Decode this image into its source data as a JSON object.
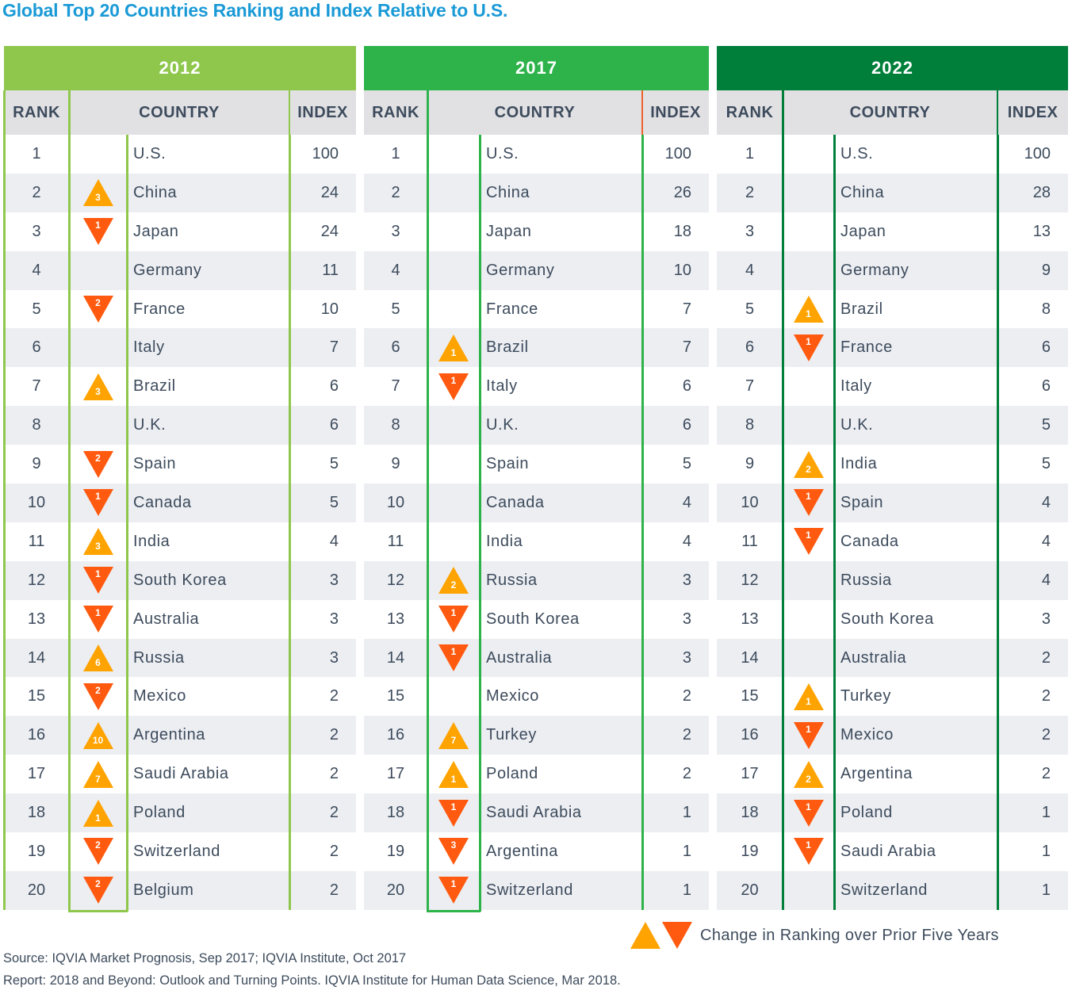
{
  "title": "Global Top 20 Countries Ranking and Index Relative to U.S.",
  "columns": {
    "rank": "RANK",
    "country": "COUNTRY",
    "index": "INDEX"
  },
  "colors": {
    "2012": "#8fc74d",
    "2017": "#2db34a",
    "2022": "#007f3a",
    "up": "#ffa300",
    "down": "#ff5a0f"
  },
  "panels": [
    {
      "year": "2012",
      "rows": [
        {
          "rank": "1",
          "country": "U.S.",
          "index": "100",
          "change": null
        },
        {
          "rank": "2",
          "country": "China",
          "index": "24",
          "change": {
            "dir": "up",
            "n": "3"
          }
        },
        {
          "rank": "3",
          "country": "Japan",
          "index": "24",
          "change": {
            "dir": "down",
            "n": "1"
          }
        },
        {
          "rank": "4",
          "country": "Germany",
          "index": "11",
          "change": null
        },
        {
          "rank": "5",
          "country": "France",
          "index": "10",
          "change": {
            "dir": "down",
            "n": "2"
          }
        },
        {
          "rank": "6",
          "country": "Italy",
          "index": "7",
          "change": null
        },
        {
          "rank": "7",
          "country": "Brazil",
          "index": "6",
          "change": {
            "dir": "up",
            "n": "3"
          }
        },
        {
          "rank": "8",
          "country": "U.K.",
          "index": "6",
          "change": null
        },
        {
          "rank": "9",
          "country": "Spain",
          "index": "5",
          "change": {
            "dir": "down",
            "n": "2"
          }
        },
        {
          "rank": "10",
          "country": "Canada",
          "index": "5",
          "change": {
            "dir": "down",
            "n": "1"
          }
        },
        {
          "rank": "11",
          "country": "India",
          "index": "4",
          "change": {
            "dir": "up",
            "n": "3"
          }
        },
        {
          "rank": "12",
          "country": "South Korea",
          "index": "3",
          "change": {
            "dir": "down",
            "n": "1"
          }
        },
        {
          "rank": "13",
          "country": "Australia",
          "index": "3",
          "change": {
            "dir": "down",
            "n": "1"
          }
        },
        {
          "rank": "14",
          "country": "Russia",
          "index": "3",
          "change": {
            "dir": "up",
            "n": "6"
          }
        },
        {
          "rank": "15",
          "country": "Mexico",
          "index": "2",
          "change": {
            "dir": "down",
            "n": "2"
          }
        },
        {
          "rank": "16",
          "country": "Argentina",
          "index": "2",
          "change": {
            "dir": "up",
            "n": "10"
          }
        },
        {
          "rank": "17",
          "country": "Saudi Arabia",
          "index": "2",
          "change": {
            "dir": "up",
            "n": "7"
          }
        },
        {
          "rank": "18",
          "country": "Poland",
          "index": "2",
          "change": {
            "dir": "up",
            "n": "1"
          }
        },
        {
          "rank": "19",
          "country": "Switzerland",
          "index": "2",
          "change": {
            "dir": "down",
            "n": "2"
          }
        },
        {
          "rank": "20",
          "country": "Belgium",
          "index": "2",
          "change": {
            "dir": "down",
            "n": "2"
          }
        }
      ]
    },
    {
      "year": "2017",
      "rows": [
        {
          "rank": "1",
          "country": "U.S.",
          "index": "100",
          "change": null
        },
        {
          "rank": "2",
          "country": "China",
          "index": "26",
          "change": null
        },
        {
          "rank": "3",
          "country": "Japan",
          "index": "18",
          "change": null
        },
        {
          "rank": "4",
          "country": "Germany",
          "index": "10",
          "change": null
        },
        {
          "rank": "5",
          "country": "France",
          "index": "7",
          "change": null
        },
        {
          "rank": "6",
          "country": "Brazil",
          "index": "7",
          "change": {
            "dir": "up",
            "n": "1"
          }
        },
        {
          "rank": "7",
          "country": "Italy",
          "index": "6",
          "change": {
            "dir": "down",
            "n": "1"
          }
        },
        {
          "rank": "8",
          "country": "U.K.",
          "index": "6",
          "change": null
        },
        {
          "rank": "9",
          "country": "Spain",
          "index": "5",
          "change": null
        },
        {
          "rank": "10",
          "country": "Canada",
          "index": "4",
          "change": null
        },
        {
          "rank": "11",
          "country": "India",
          "index": "4",
          "change": null
        },
        {
          "rank": "12",
          "country": "Russia",
          "index": "3",
          "change": {
            "dir": "up",
            "n": "2"
          }
        },
        {
          "rank": "13",
          "country": "South Korea",
          "index": "3",
          "change": {
            "dir": "down",
            "n": "1"
          }
        },
        {
          "rank": "14",
          "country": "Australia",
          "index": "3",
          "change": {
            "dir": "down",
            "n": "1"
          }
        },
        {
          "rank": "15",
          "country": "Mexico",
          "index": "2",
          "change": null
        },
        {
          "rank": "16",
          "country": "Turkey",
          "index": "2",
          "change": {
            "dir": "up",
            "n": "7"
          }
        },
        {
          "rank": "17",
          "country": "Poland",
          "index": "2",
          "change": {
            "dir": "up",
            "n": "1"
          }
        },
        {
          "rank": "18",
          "country": "Saudi Arabia",
          "index": "1",
          "change": {
            "dir": "down",
            "n": "1"
          }
        },
        {
          "rank": "19",
          "country": "Argentina",
          "index": "1",
          "change": {
            "dir": "down",
            "n": "3"
          }
        },
        {
          "rank": "20",
          "country": "Switzerland",
          "index": "1",
          "change": {
            "dir": "down",
            "n": "1"
          }
        }
      ]
    },
    {
      "year": "2022",
      "rows": [
        {
          "rank": "1",
          "country": "U.S.",
          "index": "100",
          "change": null
        },
        {
          "rank": "2",
          "country": "China",
          "index": "28",
          "change": null
        },
        {
          "rank": "3",
          "country": "Japan",
          "index": "13",
          "change": null
        },
        {
          "rank": "4",
          "country": "Germany",
          "index": "9",
          "change": null
        },
        {
          "rank": "5",
          "country": "Brazil",
          "index": "8",
          "change": {
            "dir": "up",
            "n": "1"
          }
        },
        {
          "rank": "6",
          "country": "France",
          "index": "6",
          "change": {
            "dir": "down",
            "n": "1"
          }
        },
        {
          "rank": "7",
          "country": "Italy",
          "index": "6",
          "change": null
        },
        {
          "rank": "8",
          "country": "U.K.",
          "index": "5",
          "change": null
        },
        {
          "rank": "9",
          "country": "India",
          "index": "5",
          "change": {
            "dir": "up",
            "n": "2"
          }
        },
        {
          "rank": "10",
          "country": "Spain",
          "index": "4",
          "change": {
            "dir": "down",
            "n": "1"
          }
        },
        {
          "rank": "11",
          "country": "Canada",
          "index": "4",
          "change": {
            "dir": "down",
            "n": "1"
          }
        },
        {
          "rank": "12",
          "country": "Russia",
          "index": "4",
          "change": null
        },
        {
          "rank": "13",
          "country": "South Korea",
          "index": "3",
          "change": null
        },
        {
          "rank": "14",
          "country": "Australia",
          "index": "2",
          "change": null
        },
        {
          "rank": "15",
          "country": "Turkey",
          "index": "2",
          "change": {
            "dir": "up",
            "n": "1"
          }
        },
        {
          "rank": "16",
          "country": "Mexico",
          "index": "2",
          "change": {
            "dir": "down",
            "n": "1"
          }
        },
        {
          "rank": "17",
          "country": "Argentina",
          "index": "2",
          "change": {
            "dir": "up",
            "n": "2"
          }
        },
        {
          "rank": "18",
          "country": "Poland",
          "index": "1",
          "change": {
            "dir": "down",
            "n": "1"
          }
        },
        {
          "rank": "19",
          "country": "Saudi Arabia",
          "index": "1",
          "change": {
            "dir": "down",
            "n": "1"
          }
        },
        {
          "rank": "20",
          "country": "Switzerland",
          "index": "1",
          "change": null
        }
      ]
    }
  ],
  "legend": "Change in Ranking over Prior Five Years",
  "source": "Source: IQVIA Market Prognosis, Sep 2017; IQVIA Institute, Oct 2017",
  "report": "Report: 2018 and Beyond: Outlook and Turning Points. IQVIA Institute for Human Data Science, Mar 2018."
}
